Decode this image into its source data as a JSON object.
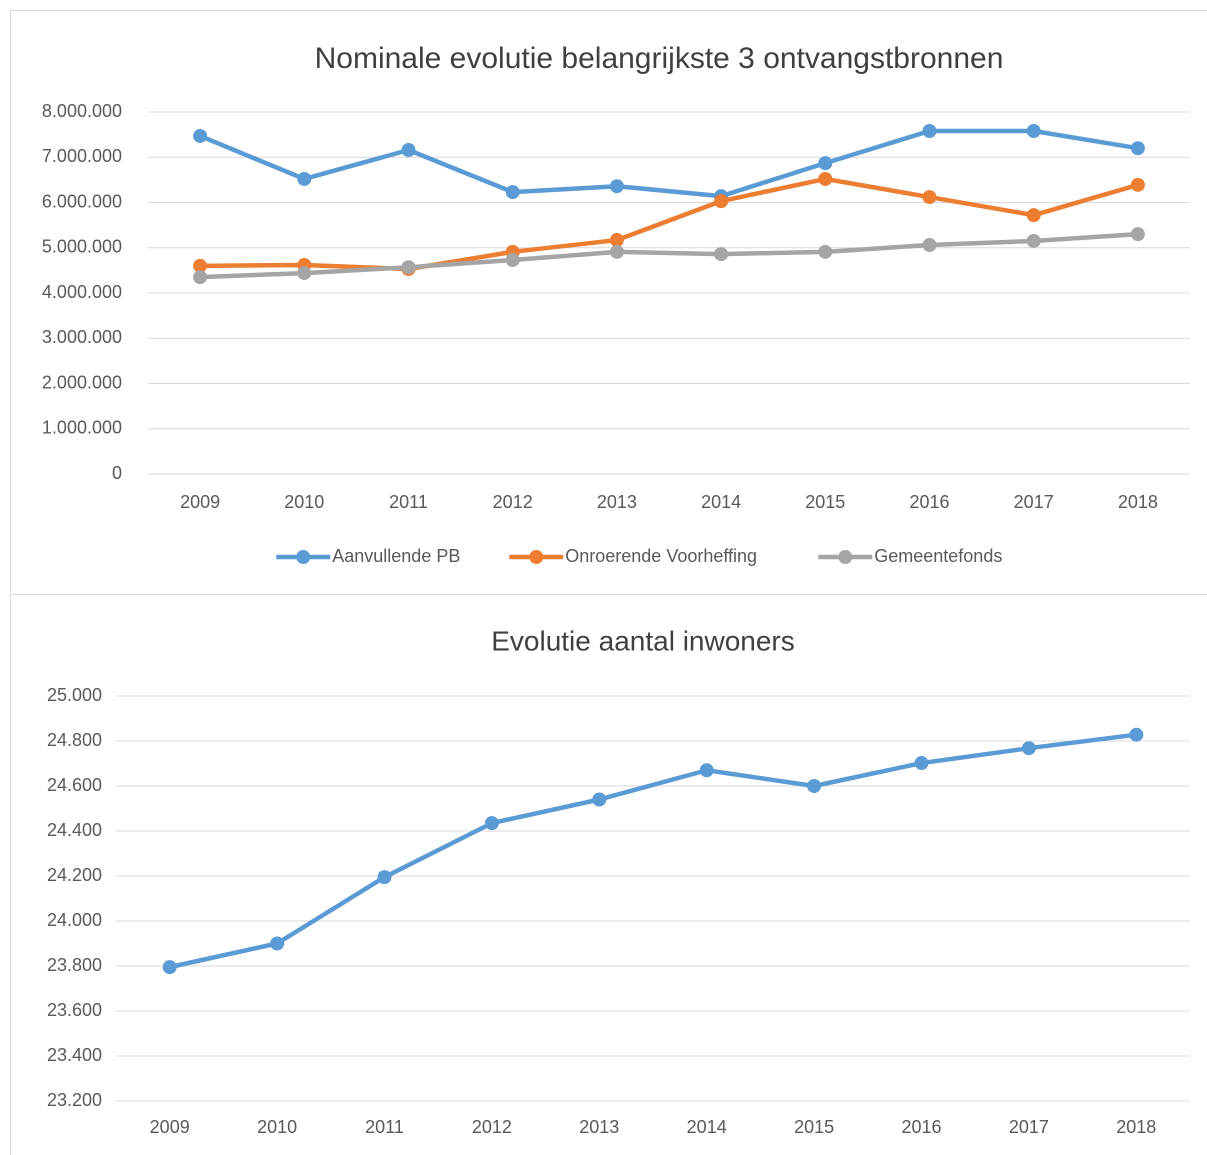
{
  "chart_data": [
    {
      "type": "line",
      "title": "Nominale evolutie belangrijkste 3 ontvangstbronnen",
      "categories": [
        "2009",
        "2010",
        "2011",
        "2012",
        "2013",
        "2014",
        "2015",
        "2016",
        "2017",
        "2018"
      ],
      "series": [
        {
          "name": "Aanvullende PB",
          "color": "#5b9bd5",
          "values": [
            7470000,
            6520000,
            7160000,
            6230000,
            6360000,
            6140000,
            6870000,
            7580000,
            7580000,
            7200000
          ]
        },
        {
          "name": "Onroerende Voorheffing",
          "color": "#ed7d31",
          "values": [
            4600000,
            4620000,
            4530000,
            4910000,
            5170000,
            6030000,
            6520000,
            6120000,
            5720000,
            6390000
          ]
        },
        {
          "name": "Gemeentefonds",
          "color": "#a5a5a5",
          "values": [
            4350000,
            4440000,
            4570000,
            4730000,
            4910000,
            4860000,
            4910000,
            5060000,
            5150000,
            5300000
          ]
        }
      ],
      "ylim": [
        0,
        8000000
      ],
      "yticks": [
        0,
        {
          "value": 1000000,
          "label": "1.000.000"
        },
        {
          "value": 2000000,
          "label": "2.000.000"
        },
        {
          "value": 3000000,
          "label": "3.000.000"
        },
        {
          "value": 4000000,
          "label": "4.000.000"
        },
        {
          "value": 5000000,
          "label": "5.000.000"
        },
        {
          "value": 6000000,
          "label": "6.000.000"
        },
        {
          "value": 7000000,
          "label": "7.000.000"
        },
        {
          "value": 8000000,
          "label": "8.000.000"
        }
      ],
      "grid": true,
      "legend": "bottom"
    },
    {
      "type": "line",
      "title": "Evolutie aantal inwoners",
      "categories": [
        "2009",
        "2010",
        "2011",
        "2012",
        "2013",
        "2014",
        "2015",
        "2016",
        "2017",
        "2018"
      ],
      "color": "#5b9bd5",
      "values": [
        23795,
        23900,
        24195,
        24435,
        24540,
        24670,
        24600,
        24702,
        24768,
        24828
      ],
      "ylim": [
        23200,
        25000
      ],
      "yticks": [
        {
          "value": 23200,
          "label": "23.200"
        },
        {
          "value": 23400,
          "label": "23.400"
        },
        {
          "value": 23600,
          "label": "23.600"
        },
        {
          "value": 23800,
          "label": "23.800"
        },
        {
          "value": 24000,
          "label": "24.000"
        },
        {
          "value": 24200,
          "label": "24.200"
        },
        {
          "value": 24400,
          "label": "24.400"
        },
        {
          "value": 24600,
          "label": "24.600"
        },
        {
          "value": 24800,
          "label": "24.800"
        },
        {
          "value": 25000,
          "label": "25.000"
        }
      ],
      "grid": true
    }
  ]
}
